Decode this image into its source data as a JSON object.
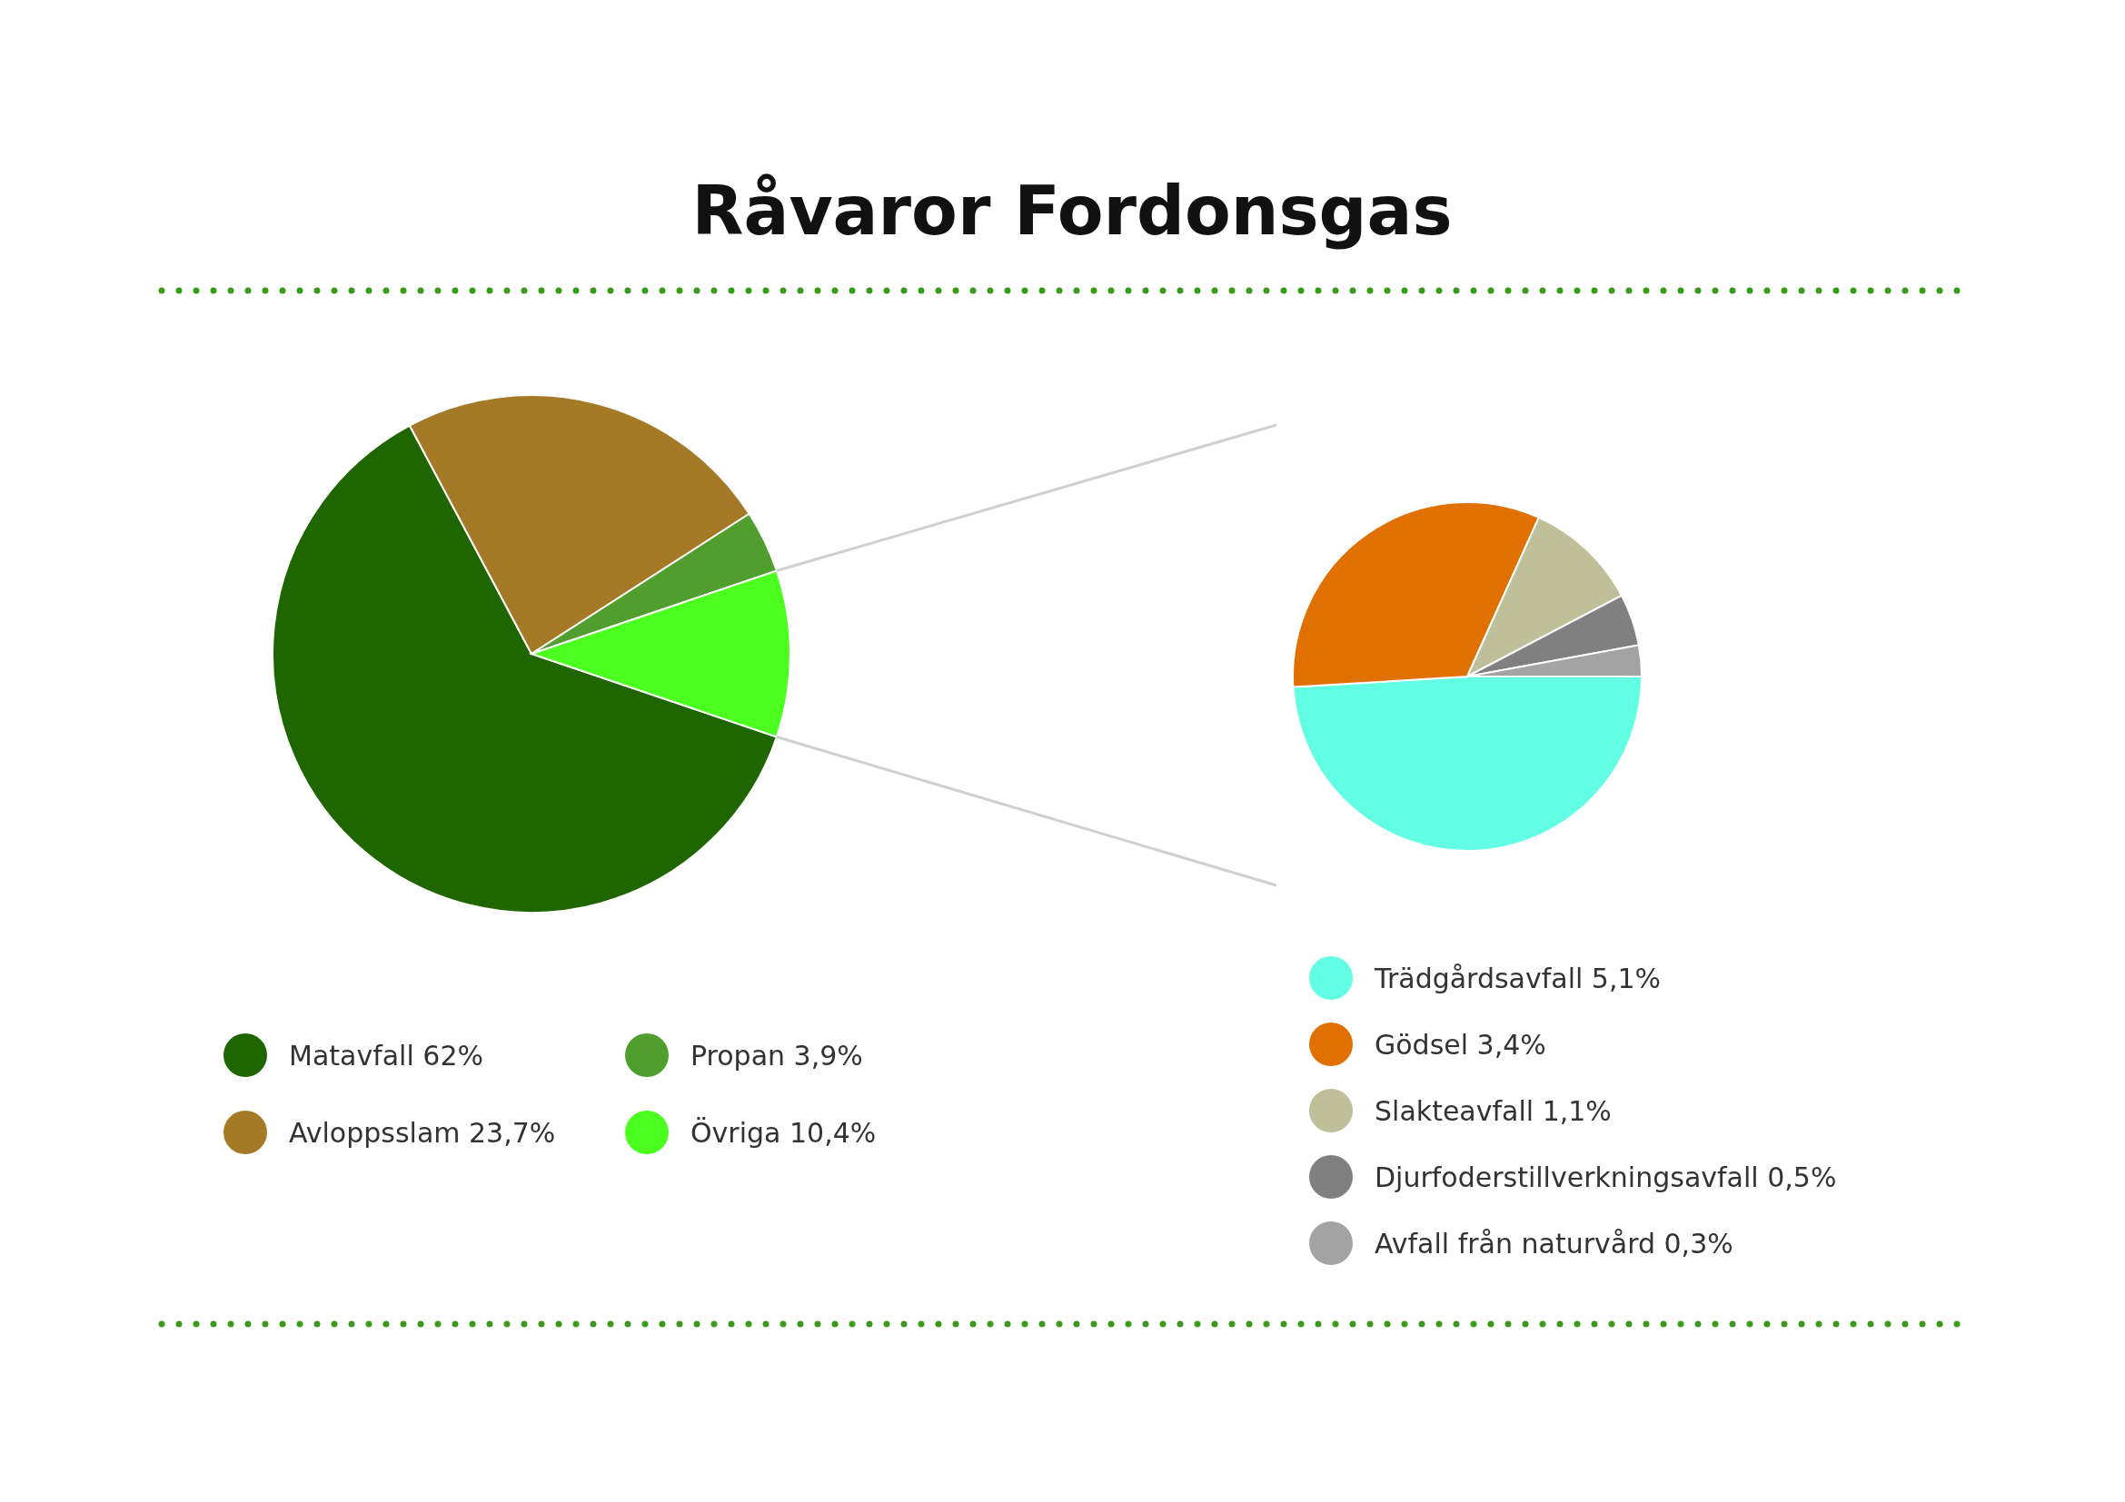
{
  "chart_data": [
    {
      "type": "pie",
      "title": "Råvaror Fordonsgas",
      "categories": [
        "Matavfall",
        "Avloppsslam",
        "Propan",
        "Övriga"
      ],
      "values": [
        62,
        23.7,
        3.9,
        10.4
      ],
      "colors": [
        "#1f6600",
        "#a57a26",
        "#4f9e2e",
        "#4bff1f"
      ],
      "value_labels": [
        "62%",
        "23,7%",
        "3,9%",
        "10,4%"
      ],
      "legend": "bottom"
    },
    {
      "type": "pie",
      "categories": [
        "Trädgårdsavfall",
        "Gödsel",
        "Slakteavfall",
        "Djurfoderstillverkningsavfall",
        "Avfall från naturvård"
      ],
      "values": [
        5.1,
        3.4,
        1.1,
        0.5,
        0.3
      ],
      "colors": [
        "#62ffe4",
        "#e07000",
        "#bfbf99",
        "#808080",
        "#a3a3a3"
      ],
      "value_labels": [
        "5,1%",
        "3,4%",
        "1,1%",
        "0,5%",
        "0,3%"
      ],
      "legend": "bottom"
    }
  ]
}
